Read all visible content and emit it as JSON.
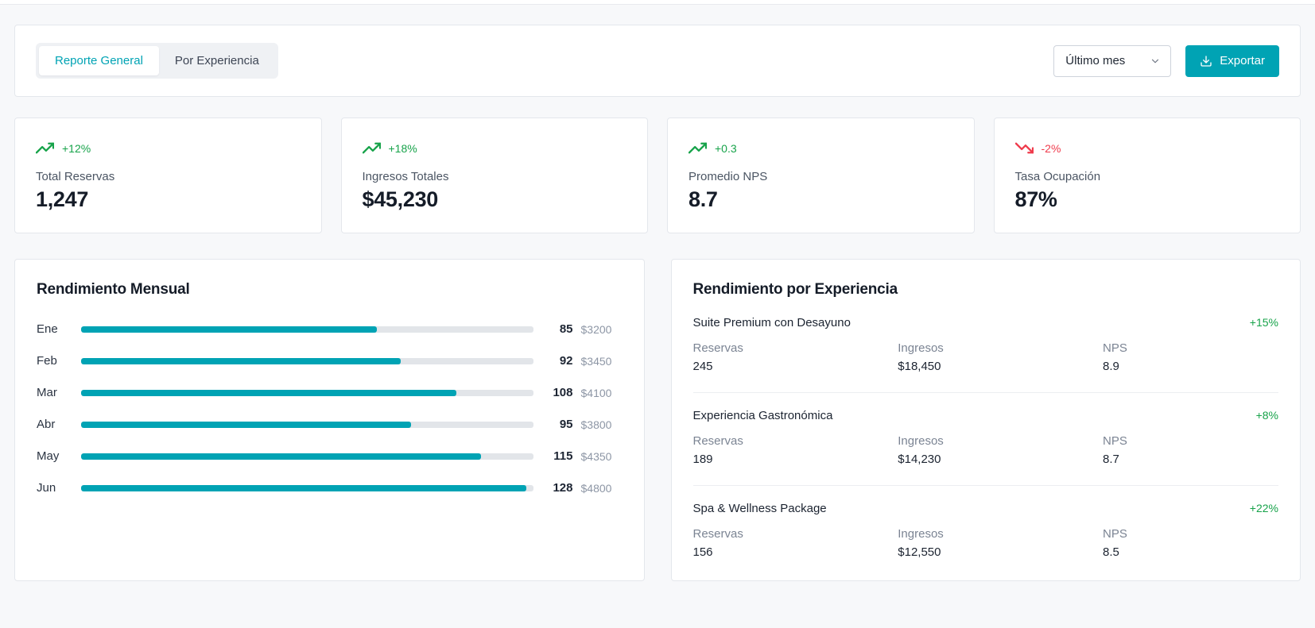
{
  "theme": {
    "accent": "#00a3b4",
    "positive": "#17a34a",
    "negative": "#ef3b4c"
  },
  "toolbar": {
    "tab_general": "Reporte General",
    "tab_experiencia": "Por Experiencia",
    "period_selected": "Último mes",
    "export_label": "Exportar"
  },
  "stats": [
    {
      "change": "+12%",
      "label": "Total Reservas",
      "value": "1,247",
      "trend": "up"
    },
    {
      "change": "+18%",
      "label": "Ingresos Totales",
      "value": "$45,230",
      "trend": "up"
    },
    {
      "change": "+0.3",
      "label": "Promedio NPS",
      "value": "8.7",
      "trend": "up"
    },
    {
      "change": "-2%",
      "label": "Tasa Ocupación",
      "value": "87%",
      "trend": "down"
    }
  ],
  "monthly": {
    "title": "Rendimiento Mensual",
    "max_value": 130,
    "rows": [
      {
        "month": "Ene",
        "reservas": 85,
        "ingresos": "$3200"
      },
      {
        "month": "Feb",
        "reservas": 92,
        "ingresos": "$3450"
      },
      {
        "month": "Mar",
        "reservas": 108,
        "ingresos": "$4100"
      },
      {
        "month": "Abr",
        "reservas": 95,
        "ingresos": "$3800"
      },
      {
        "month": "May",
        "reservas": 115,
        "ingresos": "$4350"
      },
      {
        "month": "Jun",
        "reservas": 128,
        "ingresos": "$4800"
      }
    ]
  },
  "experiences": {
    "title": "Rendimiento por Experiencia",
    "metrics": {
      "reservas": "Reservas",
      "ingresos": "Ingresos",
      "nps": "NPS"
    },
    "items": [
      {
        "name": "Suite Premium con Desayuno",
        "change": "+15%",
        "reservas": "245",
        "ingresos": "$18,450",
        "nps": "8.9"
      },
      {
        "name": "Experiencia Gastronómica",
        "change": "+8%",
        "reservas": "189",
        "ingresos": "$14,230",
        "nps": "8.7"
      },
      {
        "name": "Spa & Wellness Package",
        "change": "+22%",
        "reservas": "156",
        "ingresos": "$12,550",
        "nps": "8.5"
      }
    ]
  },
  "chart_data": {
    "type": "bar",
    "orientation": "horizontal",
    "title": "Rendimiento Mensual",
    "categories": [
      "Ene",
      "Feb",
      "Mar",
      "Abr",
      "May",
      "Jun"
    ],
    "series": [
      {
        "name": "Reservas",
        "values": [
          85,
          92,
          108,
          95,
          115,
          128
        ]
      },
      {
        "name": "Ingresos",
        "values": [
          3200,
          3450,
          4100,
          3800,
          4350,
          4800
        ]
      }
    ],
    "xlim": [
      0,
      130
    ],
    "grid": false,
    "legend": false
  }
}
